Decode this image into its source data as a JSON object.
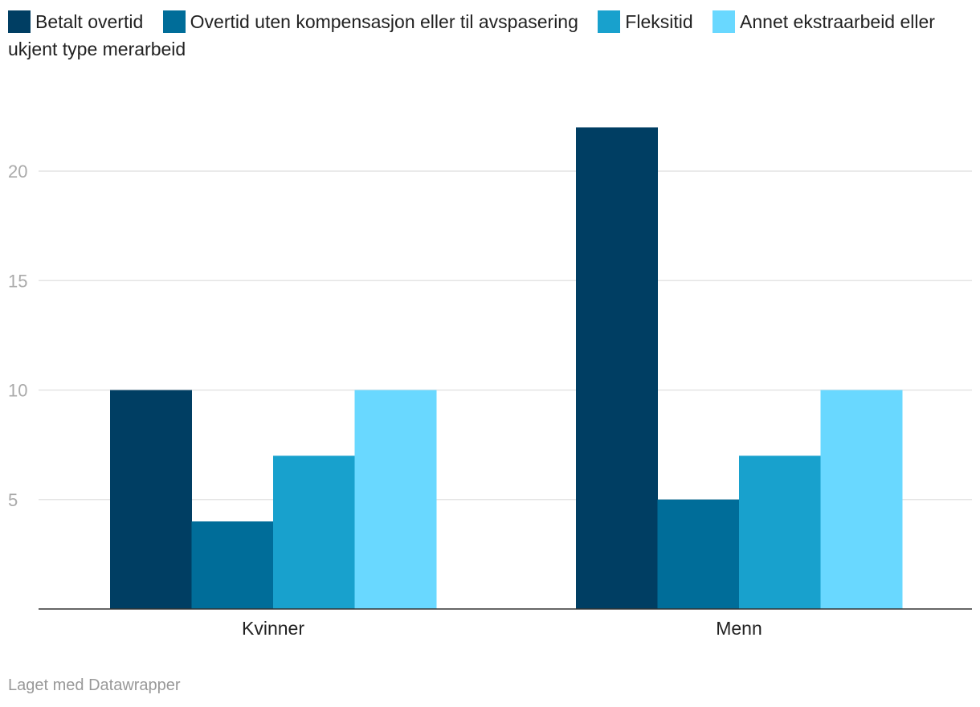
{
  "chart_data": {
    "type": "bar",
    "categories": [
      "Kvinner",
      "Menn"
    ],
    "series": [
      {
        "name": "Betalt overtid",
        "color": "#003e63",
        "values": [
          10,
          22
        ]
      },
      {
        "name": "Overtid uten kompensasjon eller til avspasering",
        "color": "#006d99",
        "values": [
          4,
          5
        ]
      },
      {
        "name": "Fleksitid",
        "color": "#18a1cd",
        "values": [
          7,
          7
        ]
      },
      {
        "name": "Annet ekstraarbeid eller ukjent type merarbeid",
        "color": "#69d8ff",
        "values": [
          10,
          10
        ]
      }
    ],
    "yticks": [
      5,
      10,
      15,
      20
    ],
    "ylim": [
      0,
      23.5
    ],
    "grid": true,
    "legend_position": "top-left"
  },
  "credit": "Laget med Datawrapper"
}
